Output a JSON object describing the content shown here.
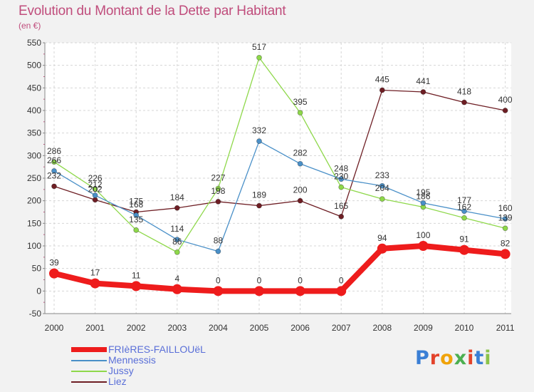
{
  "title": "Evolution du Montant de la Dette par Habitant",
  "subtitle": "(en €)",
  "logo": "Proxiti",
  "chart_data": {
    "type": "line",
    "x": [
      "2000",
      "2001",
      "2002",
      "2003",
      "2004",
      "2005",
      "2006",
      "2007",
      "2008",
      "2009",
      "2010",
      "2011"
    ],
    "ylim": [
      -50,
      550
    ],
    "yticks": [
      "-50",
      "0",
      "50",
      "100",
      "150",
      "200",
      "250",
      "300",
      "350",
      "400",
      "450",
      "500",
      "550"
    ],
    "grid": true,
    "legend_position": "bottom-left",
    "series": [
      {
        "name": "FRIèRES-FAILLOUëL",
        "color": "#ee1c1c",
        "values": [
          39,
          17,
          11,
          4,
          0,
          0,
          0,
          0,
          94,
          100,
          91,
          82
        ],
        "labels": [
          "39",
          "17",
          "11",
          "4",
          "0",
          "0",
          "0",
          "0",
          "94",
          "100",
          "91",
          "82"
        ]
      },
      {
        "name": "Mennessis",
        "color": "#4a90c8",
        "values": [
          266,
          212,
          168,
          114,
          88,
          332,
          282,
          248,
          233,
          195,
          177,
          160
        ],
        "labels": [
          "266",
          "212",
          "168",
          "114",
          "88",
          "332",
          "282",
          "248",
          "233",
          "195",
          "177",
          "160"
        ]
      },
      {
        "name": "Jussy",
        "color": "#8ed84a",
        "values": [
          286,
          226,
          135,
          86,
          227,
          517,
          395,
          230,
          204,
          186,
          162,
          139
        ],
        "labels": [
          "286",
          "226",
          "135",
          "86",
          "227",
          "517",
          "395",
          "230",
          "204",
          "186",
          "162",
          "139"
        ]
      },
      {
        "name": "Liez",
        "color": "#6e1e24",
        "values": [
          232,
          202,
          175,
          184,
          198,
          189,
          200,
          165,
          445,
          441,
          418,
          400
        ],
        "labels": [
          "232",
          "202",
          "175",
          "184",
          "198",
          "189",
          "200",
          "165",
          "445",
          "441",
          "418",
          "400"
        ]
      }
    ]
  },
  "logo_colors": [
    "#3a7fd5",
    "#e3432b",
    "#f0a30a",
    "#4caf50",
    "#e3432b",
    "#3a7fd5",
    "#8bc34a"
  ]
}
